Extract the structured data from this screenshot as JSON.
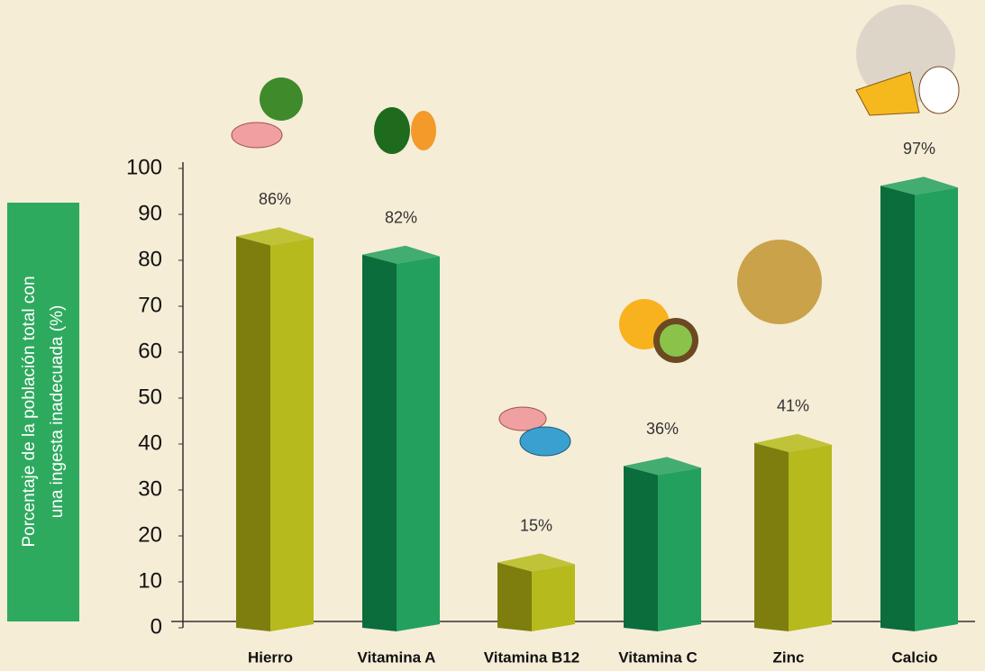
{
  "chart_data": {
    "type": "bar3d",
    "ylabel_lines": [
      "Porcentaje de la población total con",
      "una ingesta inadecuada (%)"
    ],
    "categories": [
      "Hierro",
      "Vitamina A",
      "Vitamina B12",
      "Vitamina C",
      "Zinc",
      "Calcio"
    ],
    "values": [
      86,
      82,
      15,
      36,
      41,
      97
    ],
    "value_labels": [
      "86%",
      "82%",
      "15%",
      "36%",
      "41%",
      "97%"
    ],
    "colors": [
      "#b6ba1c",
      "#23a05e",
      "#b6ba1c",
      "#23a05e",
      "#b6ba1c",
      "#23a05e"
    ],
    "side_colors": [
      "#7d7e0e",
      "#0b6d3c",
      "#7d7e0e",
      "#0b6d3c",
      "#7d7e0e",
      "#0b6d3c"
    ],
    "ylim": [
      0,
      100
    ],
    "yticks": [
      0,
      10,
      20,
      30,
      40,
      50,
      60,
      70,
      80,
      90,
      100
    ],
    "grid": false
  }
}
